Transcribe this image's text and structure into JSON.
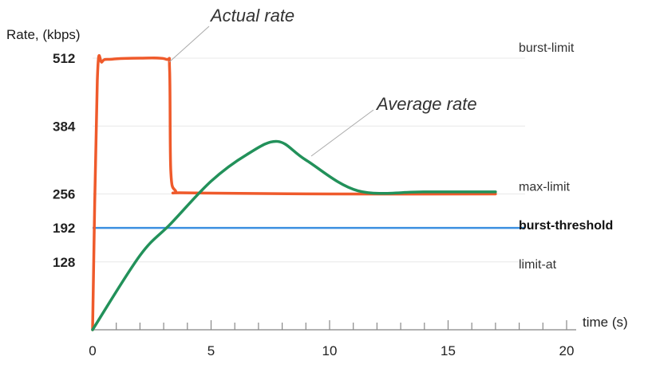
{
  "chart_data": {
    "type": "line",
    "ylabel": "Rate, (kbps)",
    "xlabel": "time (s)",
    "xlim": [
      0,
      20
    ],
    "ylim": [
      0,
      512
    ],
    "x_ticks": [
      "0",
      "5",
      "10",
      "15",
      "20"
    ],
    "y_ticks": [
      "512",
      "384",
      "256",
      "192",
      "128"
    ],
    "limits": [
      {
        "value": 512,
        "label": "burst-limit",
        "bold": false,
        "color": "#e8e8e8"
      },
      {
        "value": 384,
        "label": "",
        "bold": false,
        "color": "#e8e8e8"
      },
      {
        "value": 256,
        "label": "max-limit",
        "bold": false,
        "color": "#e8e8e8"
      },
      {
        "value": 192,
        "label": "burst-threshold",
        "bold": true,
        "color": "#3b8fe0"
      },
      {
        "value": 128,
        "label": "limit-at",
        "bold": false,
        "color": "#e8e8e8"
      }
    ],
    "series": [
      {
        "name": "Actual rate",
        "color": "#ef5a2b",
        "x": [
          0,
          0.2,
          0.4,
          0.8,
          2.0,
          3.1,
          3.25,
          3.3,
          3.5,
          4.0,
          10,
          17
        ],
        "y": [
          0,
          470,
          505,
          510,
          512,
          510,
          490,
          300,
          262,
          258,
          256,
          256
        ]
      },
      {
        "name": "Average rate",
        "color": "#22915a",
        "x": [
          0,
          2,
          3.3,
          5,
          6.5,
          7.8,
          9,
          11.2,
          14,
          17
        ],
        "y": [
          0,
          140,
          200,
          280,
          330,
          355,
          320,
          262,
          260,
          260
        ]
      }
    ]
  }
}
